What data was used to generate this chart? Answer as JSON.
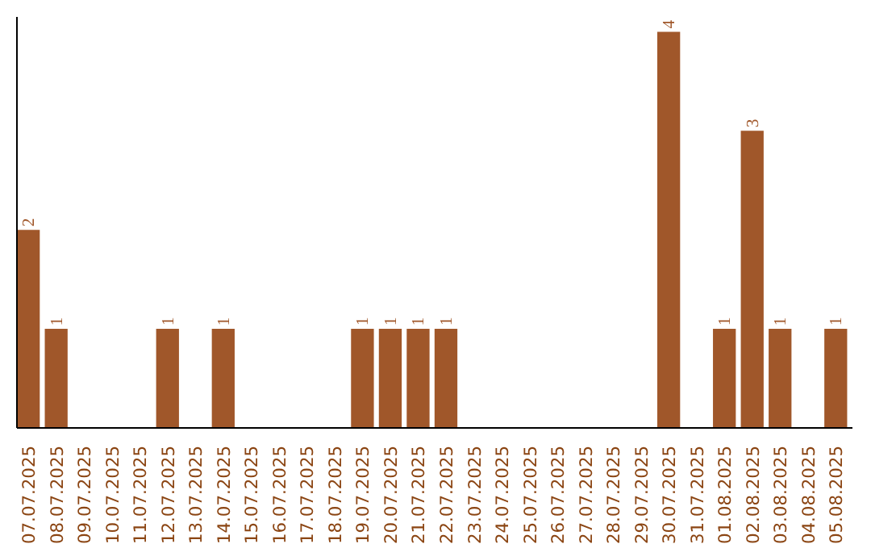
{
  "chart_data": {
    "type": "bar",
    "categories": [
      "07.07.2025",
      "08.07.2025",
      "09.07.2025",
      "10.07.2025",
      "11.07.2025",
      "12.07.2025",
      "13.07.2025",
      "14.07.2025",
      "15.07.2025",
      "16.07.2025",
      "17.07.2025",
      "18.07.2025",
      "19.07.2025",
      "20.07.2025",
      "21.07.2025",
      "22.07.2025",
      "23.07.2025",
      "24.07.2025",
      "25.07.2025",
      "26.07.2025",
      "27.07.2025",
      "28.07.2025",
      "29.07.2025",
      "30.07.2025",
      "31.07.2025",
      "01.08.2025",
      "02.08.2025",
      "03.08.2025",
      "04.08.2025",
      "05.08.2025"
    ],
    "values": [
      2,
      1,
      0,
      0,
      0,
      1,
      0,
      1,
      0,
      0,
      0,
      0,
      1,
      1,
      1,
      1,
      0,
      0,
      0,
      0,
      0,
      0,
      0,
      4,
      0,
      1,
      3,
      1,
      0,
      1
    ],
    "value_labels": [
      "2",
      "1",
      null,
      null,
      null,
      "1",
      null,
      "1",
      null,
      null,
      null,
      null,
      "1",
      "1",
      "1",
      "1",
      null,
      null,
      null,
      null,
      null,
      null,
      null,
      "4",
      null,
      "1",
      "3",
      "1",
      null,
      "1"
    ],
    "color": "#a0572a",
    "ylim": [
      0,
      4.15
    ],
    "tick_labels": "x",
    "grid": false
  }
}
